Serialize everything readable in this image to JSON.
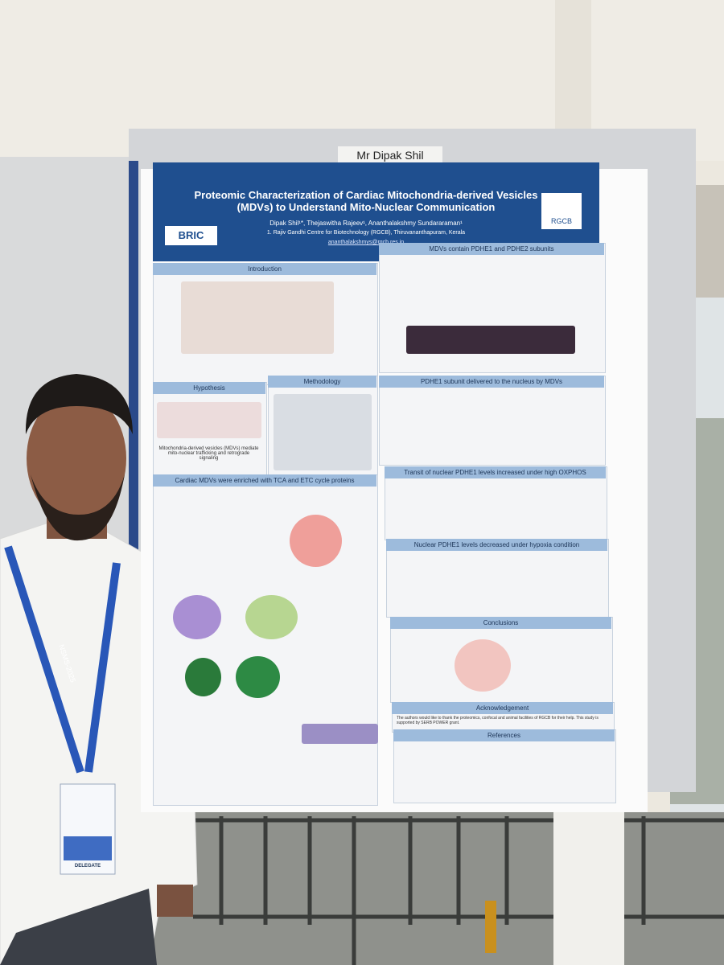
{
  "name_card": "Mr Dipak Shil",
  "poster": {
    "title": "Proteomic Characterization of Cardiac Mitochondria-derived Vesicles (MDVs) to Understand Mito-Nuclear Communication",
    "authors": "Dipak Shil¹*, Thejaswitha Rajeev¹, Ananthalakshmy Sundararaman¹",
    "affiliation": "1. Rajiv Gandhi Centre for Biotechnology (RGCB), Thiruvananthapuram, Kerala",
    "email": "ananthalakshmys@rgcb.res.in",
    "logos": [
      "BRIC",
      "RGCB"
    ],
    "sections": [
      {
        "title": "Introduction"
      },
      {
        "title": "Hypothesis",
        "text": "Mitochondria-derived vesicles (MDVs) mediate mito-nuclear trafficking and retrograde signaling"
      },
      {
        "title": "Methodology"
      },
      {
        "title": "Cardiac MDVs were enriched with TCA and ETC cycle proteins"
      },
      {
        "title": "MDVs contain PDHE1 and PDHE2 subunits"
      },
      {
        "title": "PDHE1 subunit delivered to the nucleus by MDVs"
      },
      {
        "title": "Transit of nuclear PDHE1 levels increased under high OXPHOS"
      },
      {
        "title": "Nuclear PDHE1 levels decreased under hypoxia condition"
      },
      {
        "title": "Conclusions"
      },
      {
        "title": "Acknowledgement",
        "text": "The authors would like to thank the proteomics, confocal and animal facilities of RGCB for their help. This study is supported by SERB POWER grant."
      },
      {
        "title": "References"
      }
    ]
  },
  "badge": {
    "lanyard": "NSMS-2025",
    "role": "DELEGATE"
  }
}
